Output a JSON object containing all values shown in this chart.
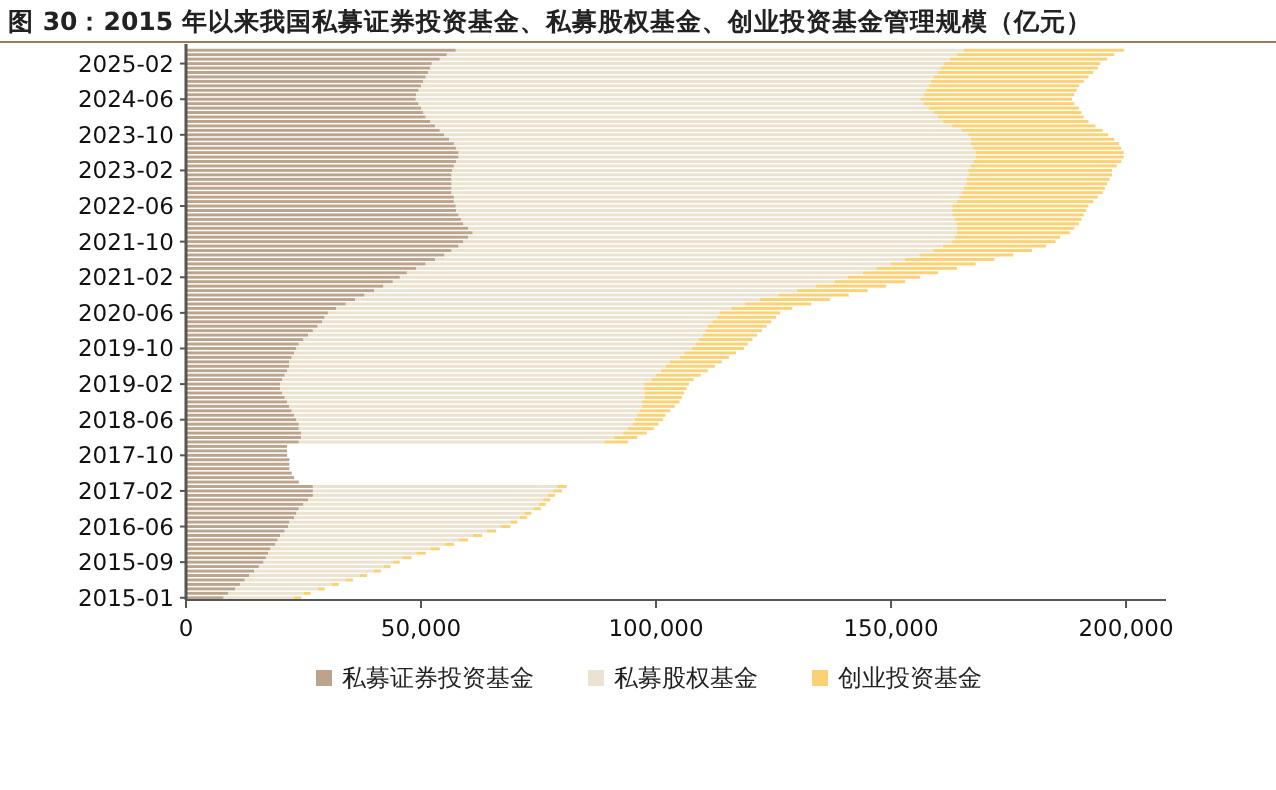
{
  "chart_data": {
    "type": "bar",
    "orientation": "horizontal",
    "stacked": true,
    "title": "图 30：2015 年以来我国私募证券投资基金、私募股权基金、创业投资基金管理规模（亿元）",
    "categories": [
      null,
      null,
      null,
      "2025-02",
      null,
      null,
      null,
      null,
      null,
      null,
      null,
      "2024-06",
      null,
      null,
      null,
      null,
      null,
      null,
      null,
      "2023-10",
      null,
      null,
      null,
      null,
      null,
      null,
      null,
      "2023-02",
      null,
      null,
      null,
      null,
      null,
      null,
      null,
      "2022-06",
      null,
      null,
      null,
      null,
      null,
      null,
      null,
      "2021-10",
      null,
      null,
      null,
      null,
      null,
      null,
      null,
      "2021-02",
      null,
      null,
      null,
      null,
      null,
      null,
      null,
      "2020-06",
      null,
      null,
      null,
      null,
      null,
      null,
      null,
      "2019-10",
      null,
      null,
      null,
      null,
      null,
      null,
      null,
      "2019-02",
      null,
      null,
      null,
      null,
      null,
      null,
      null,
      "2018-06",
      null,
      null,
      null,
      null,
      null,
      null,
      null,
      "2017-10",
      null,
      null,
      null,
      null,
      null,
      null,
      null,
      "2017-02",
      null,
      null,
      null,
      null,
      null,
      null,
      null,
      "2016-06",
      null,
      null,
      null,
      null,
      null,
      null,
      null,
      "2015-09",
      null,
      null,
      null,
      null,
      null,
      null,
      null,
      "2015-01"
    ],
    "series": [
      {
        "name": "私募证券投资基金",
        "color": "#bca48c",
        "values": [
          57400,
          55500,
          54000,
          52300,
          52000,
          51500,
          51000,
          50500,
          50000,
          49500,
          49000,
          48900,
          49500,
          50000,
          50500,
          51000,
          52000,
          53000,
          54000,
          54900,
          56000,
          57000,
          57500,
          58000,
          58000,
          57500,
          57000,
          56600,
          56500,
          56500,
          56500,
          56500,
          56500,
          57000,
          57000,
          57400,
          57500,
          58000,
          58500,
          59000,
          60000,
          61000,
          60000,
          59000,
          58000,
          56500,
          55000,
          53000,
          51000,
          49000,
          47000,
          45500,
          44000,
          42000,
          40000,
          38000,
          36000,
          34000,
          32000,
          30200,
          29500,
          29000,
          28000,
          27000,
          26000,
          25000,
          24000,
          23400,
          23000,
          22500,
          22000,
          22000,
          21500,
          21000,
          20500,
          20000,
          20000,
          20500,
          21000,
          21500,
          22000,
          22500,
          23000,
          23500,
          24000,
          24000,
          24500,
          24500,
          24000,
          21500,
          21500,
          21500,
          22000,
          22000,
          22000,
          22500,
          23000,
          24000,
          27000,
          27000,
          27000,
          26000,
          25000,
          24000,
          23500,
          23000,
          22000,
          21700,
          21000,
          20000,
          19500,
          19000,
          18000,
          17500,
          17000,
          16500,
          15500,
          14500,
          13500,
          12500,
          11500,
          10500,
          9000,
          8000
        ]
      },
      {
        "name": "私募股权基金",
        "color": "#ebe2cf",
        "values": [
          108100,
          108500,
          108500,
          109000,
          108500,
          108500,
          108000,
          108000,
          108000,
          108000,
          108000,
          107300,
          107500,
          108000,
          108500,
          109000,
          109000,
          110000,
          111000,
          111500,
          111000,
          110000,
          110000,
          110000,
          110000,
          110000,
          110000,
          109800,
          110000,
          109500,
          109500,
          109000,
          108500,
          107500,
          107000,
          105600,
          105500,
          105000,
          105000,
          105000,
          104000,
          103000,
          103500,
          104000,
          103000,
          102500,
          101000,
          100000,
          99000,
          98000,
          97000,
          95300,
          94000,
          92000,
          90000,
          88000,
          86000,
          85000,
          84000,
          83400,
          83500,
          83000,
          83000,
          83500,
          84000,
          84000,
          84500,
          84300,
          83000,
          82500,
          81000,
          80000,
          79500,
          79000,
          78500,
          77500,
          77500,
          77000,
          76500,
          75500,
          75000,
          74000,
          73000,
          72000,
          71000,
          70000,
          68500,
          66500,
          65000,
          null,
          null,
          null,
          null,
          null,
          null,
          null,
          null,
          null,
          52000,
          51000,
          50000,
          50000,
          50000,
          50000,
          48500,
          48000,
          47000,
          45300,
          43000,
          41000,
          38500,
          36000,
          34000,
          31500,
          29000,
          27500,
          26500,
          25500,
          23500,
          21500,
          19500,
          17500,
          16000,
          15000
        ]
      },
      {
        "name": "创业投资基金",
        "color": "#fbd173",
        "values": [
          34100,
          33500,
          33500,
          33200,
          33500,
          33000,
          33000,
          32500,
          32000,
          32000,
          32000,
          32300,
          32000,
          32000,
          31500,
          31000,
          31000,
          30500,
          30000,
          29800,
          30500,
          31500,
          31500,
          31500,
          31500,
          31500,
          31000,
          30600,
          30500,
          30500,
          30000,
          30000,
          30000,
          29500,
          29000,
          29000,
          28500,
          28000,
          27000,
          26000,
          25000,
          24000,
          22500,
          22000,
          22000,
          21000,
          20000,
          19000,
          18000,
          17000,
          16000,
          15400,
          15000,
          15000,
          15000,
          15000,
          15000,
          14000,
          13000,
          12800,
          12500,
          12500,
          12500,
          12000,
          11500,
          11500,
          11000,
          11000,
          11000,
          10500,
          11000,
          10500,
          10000,
          9500,
          9000,
          9500,
          9000,
          8500,
          8000,
          8000,
          7000,
          6500,
          6000,
          6000,
          5500,
          5500,
          5000,
          5000,
          5000,
          null,
          null,
          null,
          null,
          null,
          null,
          null,
          null,
          null,
          2000,
          2000,
          1500,
          1500,
          1500,
          1500,
          1500,
          1500,
          1500,
          2000,
          2000,
          2000,
          2000,
          2000,
          2000,
          2000,
          2000,
          1500,
          1500,
          1500,
          1500,
          1500,
          1500,
          1500,
          1500,
          1500
        ]
      }
    ],
    "xlim": [
      0,
      208500
    ],
    "xticks": [
      0,
      {
        "value": 50000,
        "label": "50,000"
      },
      {
        "value": 100000,
        "label": "100,000"
      },
      {
        "value": 150000,
        "label": "150,000"
      },
      {
        "value": 200000,
        "label": "200,000"
      }
    ],
    "grid": false,
    "legend": "bottom"
  }
}
